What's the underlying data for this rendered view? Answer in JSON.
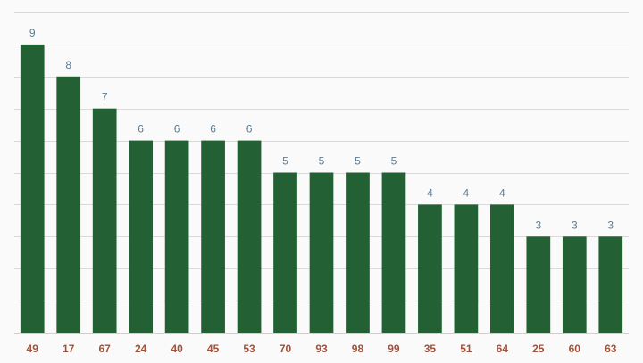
{
  "chart_data": {
    "type": "bar",
    "categories": [
      "49",
      "17",
      "67",
      "24",
      "40",
      "45",
      "53",
      "70",
      "93",
      "98",
      "99",
      "35",
      "51",
      "64",
      "25",
      "60",
      "63"
    ],
    "values": [
      9,
      8,
      7,
      6,
      6,
      6,
      6,
      5,
      5,
      5,
      5,
      4,
      4,
      4,
      3,
      3,
      3
    ],
    "title": "",
    "xlabel": "",
    "ylabel": "",
    "ylim": [
      0,
      10
    ],
    "grid": true,
    "data_labels": true,
    "colors": {
      "bar": "#236134",
      "value_label": "#5b7c93",
      "category_label": "#a0523a",
      "grid": "#d9d9d9",
      "background": "#fafafa"
    }
  }
}
